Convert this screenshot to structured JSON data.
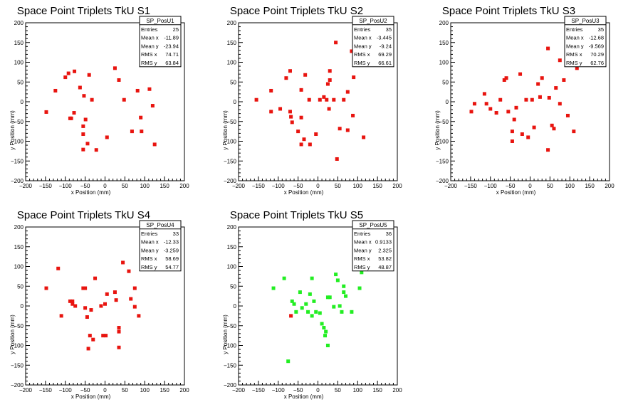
{
  "chart_data": [
    {
      "type": "scatter",
      "title": "Space Point Triplets TkU S1",
      "xlabel": "x Position (mm)",
      "ylabel": "y Position (mm)",
      "xlim": [
        -200,
        200
      ],
      "ylim": [
        -200,
        200
      ],
      "xticks": [
        "−200",
        "−150",
        "−100",
        "−50",
        "0",
        "50",
        "100",
        "150",
        "200"
      ],
      "yticks": [
        "−200",
        "−150",
        "−100",
        "−50",
        "0",
        "50",
        "100",
        "150",
        "200"
      ],
      "marker_color": "#e8140f",
      "stats": {
        "name": "SP_PosU1",
        "rows": [
          {
            "label": "Entries",
            "value": "25"
          },
          {
            "label": "Mean x",
            "value": "-11.89"
          },
          {
            "label": "Mean y",
            "value": "-23.94"
          },
          {
            "label": "RMS x",
            "value": "74.71"
          },
          {
            "label": "RMS y",
            "value": "63.84"
          }
        ]
      },
      "points": [
        [
          -148,
          -26
        ],
        [
          -125,
          28
        ],
        [
          -100,
          62
        ],
        [
          -92,
          72
        ],
        [
          -77,
          77
        ],
        [
          -88,
          -42
        ],
        [
          -78,
          -28
        ],
        [
          -85,
          -42
        ],
        [
          -63,
          36
        ],
        [
          -53,
          15
        ],
        [
          -40,
          68
        ],
        [
          -33,
          5
        ],
        [
          -55,
          -62
        ],
        [
          -49,
          -45
        ],
        [
          -55,
          -82
        ],
        [
          -44,
          -106
        ],
        [
          -55,
          -121
        ],
        [
          -22,
          -122
        ],
        [
          5,
          -90
        ],
        [
          25,
          85
        ],
        [
          35,
          55
        ],
        [
          48,
          5
        ],
        [
          68,
          -75
        ],
        [
          82,
          28
        ],
        [
          90,
          -40
        ],
        [
          92,
          -75
        ],
        [
          112,
          32
        ],
        [
          120,
          -10
        ],
        [
          125,
          -108
        ]
      ]
    },
    {
      "type": "scatter",
      "title": "Space Point Triplets TkU S2",
      "xlabel": "x Position (mm)",
      "ylabel": "y Position (mm)",
      "xlim": [
        -200,
        200
      ],
      "ylim": [
        -200,
        200
      ],
      "xticks": [
        "−200",
        "−150",
        "−100",
        "−50",
        "0",
        "50",
        "100",
        "150",
        "200"
      ],
      "yticks": [
        "−200",
        "−150",
        "−100",
        "−50",
        "0",
        "50",
        "100",
        "150",
        "200"
      ],
      "marker_color": "#e8140f",
      "stats": {
        "name": "SP_PosU2",
        "rows": [
          {
            "label": "Entries",
            "value": "35"
          },
          {
            "label": "Mean x",
            "value": "-3.445"
          },
          {
            "label": "Mean y",
            "value": "-9.24"
          },
          {
            "label": "RMS x",
            "value": "69.29"
          },
          {
            "label": "RMS y",
            "value": "66.61"
          }
        ]
      },
      "points": [
        [
          -155,
          5
        ],
        [
          -118,
          28
        ],
        [
          -118,
          -25
        ],
        [
          -95,
          -18
        ],
        [
          -80,
          60
        ],
        [
          -70,
          78
        ],
        [
          -70,
          -25
        ],
        [
          -68,
          -38
        ],
        [
          -65,
          -52
        ],
        [
          -50,
          -75
        ],
        [
          -42,
          30
        ],
        [
          -42,
          -40
        ],
        [
          -35,
          -95
        ],
        [
          -42,
          -108
        ],
        [
          -32,
          68
        ],
        [
          -22,
          5
        ],
        [
          -20,
          -108
        ],
        [
          -5,
          -82
        ],
        [
          5,
          5
        ],
        [
          15,
          12
        ],
        [
          22,
          5
        ],
        [
          25,
          45
        ],
        [
          28,
          -18
        ],
        [
          30,
          78
        ],
        [
          30,
          55
        ],
        [
          40,
          5
        ],
        [
          45,
          150
        ],
        [
          48,
          -145
        ],
        [
          55,
          -68
        ],
        [
          65,
          5
        ],
        [
          75,
          -72
        ],
        [
          75,
          25
        ],
        [
          85,
          128
        ],
        [
          90,
          62
        ],
        [
          88,
          -35
        ],
        [
          115,
          -90
        ]
      ]
    },
    {
      "type": "scatter",
      "title": "Space Point Triplets TkU S3",
      "xlabel": "x Position (mm)",
      "ylabel": "y Position (mm)",
      "xlim": [
        -200,
        200
      ],
      "ylim": [
        -200,
        200
      ],
      "xticks": [
        "−200",
        "−150",
        "−100",
        "−50",
        "0",
        "50",
        "100",
        "150",
        "200"
      ],
      "yticks": [
        "−200",
        "−150",
        "−100",
        "−50",
        "0",
        "50",
        "100",
        "150",
        "200"
      ],
      "marker_color": "#e8140f",
      "stats": {
        "name": "SP_PosU3",
        "rows": [
          {
            "label": "Entries",
            "value": "35"
          },
          {
            "label": "Mean x",
            "value": "-12.68"
          },
          {
            "label": "Mean y",
            "value": "-9.569"
          },
          {
            "label": "RMS x",
            "value": "70.29"
          },
          {
            "label": "RMS y",
            "value": "62.76"
          }
        ]
      },
      "points": [
        [
          -148,
          -25
        ],
        [
          -140,
          -5
        ],
        [
          -115,
          20
        ],
        [
          -110,
          -5
        ],
        [
          -100,
          -18
        ],
        [
          -85,
          -28
        ],
        [
          -75,
          5
        ],
        [
          -65,
          55
        ],
        [
          -60,
          60
        ],
        [
          -55,
          -25
        ],
        [
          -45,
          -75
        ],
        [
          -45,
          -100
        ],
        [
          -40,
          -45
        ],
        [
          -35,
          -15
        ],
        [
          -25,
          70
        ],
        [
          -20,
          -82
        ],
        [
          -10,
          5
        ],
        [
          -5,
          -90
        ],
        [
          5,
          5
        ],
        [
          10,
          -65
        ],
        [
          20,
          45
        ],
        [
          25,
          12
        ],
        [
          30,
          60
        ],
        [
          45,
          135
        ],
        [
          45,
          -122
        ],
        [
          48,
          10
        ],
        [
          55,
          -60
        ],
        [
          60,
          -68
        ],
        [
          65,
          35
        ],
        [
          75,
          -5
        ],
        [
          85,
          55
        ],
        [
          75,
          105
        ],
        [
          95,
          -35
        ],
        [
          110,
          -75
        ],
        [
          118,
          85
        ]
      ]
    },
    {
      "type": "scatter",
      "title": "Space Point Triplets TkU S4",
      "xlabel": "x Position (mm)",
      "ylabel": "y Position (mm)",
      "xlim": [
        -200,
        200
      ],
      "ylim": [
        -200,
        200
      ],
      "xticks": [
        "−200",
        "−150",
        "−100",
        "−50",
        "0",
        "50",
        "100",
        "150",
        "200"
      ],
      "yticks": [
        "−200",
        "−150",
        "−100",
        "−50",
        "0",
        "50",
        "100",
        "150",
        "200"
      ],
      "marker_color": "#e8140f",
      "stats": {
        "name": "SP_PosU4",
        "rows": [
          {
            "label": "Entries",
            "value": "33"
          },
          {
            "label": "Mean x",
            "value": "-12.33"
          },
          {
            "label": "Mean y",
            "value": "-3.259"
          },
          {
            "label": "RMS x",
            "value": "58.69"
          },
          {
            "label": "RMS y",
            "value": "54.77"
          }
        ]
      },
      "points": [
        [
          -148,
          45
        ],
        [
          -118,
          95
        ],
        [
          -110,
          -25
        ],
        [
          -88,
          12
        ],
        [
          -82,
          12
        ],
        [
          -82,
          5
        ],
        [
          -75,
          0
        ],
        [
          -55,
          45
        ],
        [
          -50,
          45
        ],
        [
          -50,
          -5
        ],
        [
          -45,
          -28
        ],
        [
          -38,
          -75
        ],
        [
          -42,
          -108
        ],
        [
          -35,
          -10
        ],
        [
          -25,
          70
        ],
        [
          -30,
          -85
        ],
        [
          -10,
          0
        ],
        [
          0,
          5
        ],
        [
          5,
          30
        ],
        [
          -5,
          -75
        ],
        [
          2,
          -75
        ],
        [
          25,
          35
        ],
        [
          28,
          15
        ],
        [
          35,
          -55
        ],
        [
          35,
          -105
        ],
        [
          35,
          -65
        ],
        [
          45,
          110
        ],
        [
          60,
          88
        ],
        [
          65,
          18
        ],
        [
          75,
          -2
        ],
        [
          75,
          45
        ],
        [
          85,
          -25
        ]
      ]
    },
    {
      "type": "scatter",
      "title": "Space Point Triplets TkU S5",
      "xlabel": "x Position (mm)",
      "ylabel": "y Position (mm)",
      "xlim": [
        -200,
        200
      ],
      "ylim": [
        -200,
        200
      ],
      "xticks": [
        "−200",
        "−150",
        "−100",
        "−50",
        "0",
        "50",
        "100",
        "150",
        "200"
      ],
      "yticks": [
        "−200",
        "−150",
        "−100",
        "−50",
        "0",
        "50",
        "100",
        "150",
        "200"
      ],
      "marker_color": "#22ee22",
      "stats": {
        "name": "SP_PosU5",
        "rows": [
          {
            "label": "Entries",
            "value": "36"
          },
          {
            "label": "Mean x",
            "value": "0.9133"
          },
          {
            "label": "Mean y",
            "value": "2.325"
          },
          {
            "label": "RMS x",
            "value": "53.82"
          },
          {
            "label": "RMS y",
            "value": "48.87"
          }
        ]
      },
      "points": [
        [
          -112,
          45
        ],
        [
          -85,
          70
        ],
        [
          -75,
          -140
        ],
        [
          -65,
          12
        ],
        [
          -60,
          5
        ],
        [
          -55,
          -15
        ],
        [
          -45,
          35
        ],
        [
          -40,
          -5
        ],
        [
          -30,
          5
        ],
        [
          -25,
          -15
        ],
        [
          -20,
          30
        ],
        [
          -15,
          70
        ],
        [
          -15,
          -25
        ],
        [
          -10,
          12
        ],
        [
          -5,
          -15
        ],
        [
          5,
          -18
        ],
        [
          10,
          -45
        ],
        [
          15,
          -55
        ],
        [
          18,
          -75
        ],
        [
          20,
          -65
        ],
        [
          25,
          -100
        ],
        [
          25,
          22
        ],
        [
          30,
          22
        ],
        [
          40,
          -2
        ],
        [
          45,
          80
        ],
        [
          50,
          65
        ],
        [
          55,
          0
        ],
        [
          60,
          -15
        ],
        [
          65,
          50
        ],
        [
          65,
          35
        ],
        [
          70,
          25
        ],
        [
          85,
          -15
        ],
        [
          105,
          45
        ],
        [
          110,
          85
        ]
      ],
      "highlight_points": [
        [
          -68,
          -25
        ]
      ],
      "highlight_color": "#e8140f"
    }
  ]
}
